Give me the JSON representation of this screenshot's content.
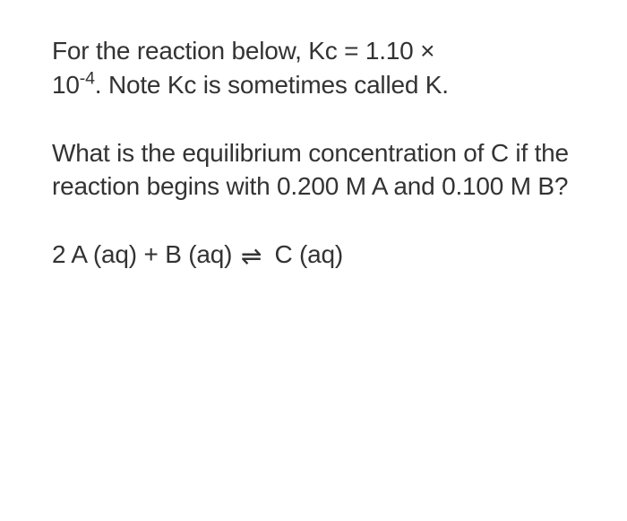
{
  "paragraph1": {
    "part1": "For the reaction below, Kc = 1.10 ×",
    "part2_prefix": "10",
    "part2_exponent": "-4",
    "part2_suffix": ". Note Kc is sometimes called K."
  },
  "paragraph2": {
    "text": "What is the equilibrium concentration of C if the reaction begins with 0.200 M A and 0.100 M B?"
  },
  "paragraph3": {
    "left": "2 A (aq) + B (aq) ",
    "right": " C (aq)"
  },
  "colors": {
    "text": "#333333",
    "background": "#ffffff"
  },
  "fontsize": 28
}
